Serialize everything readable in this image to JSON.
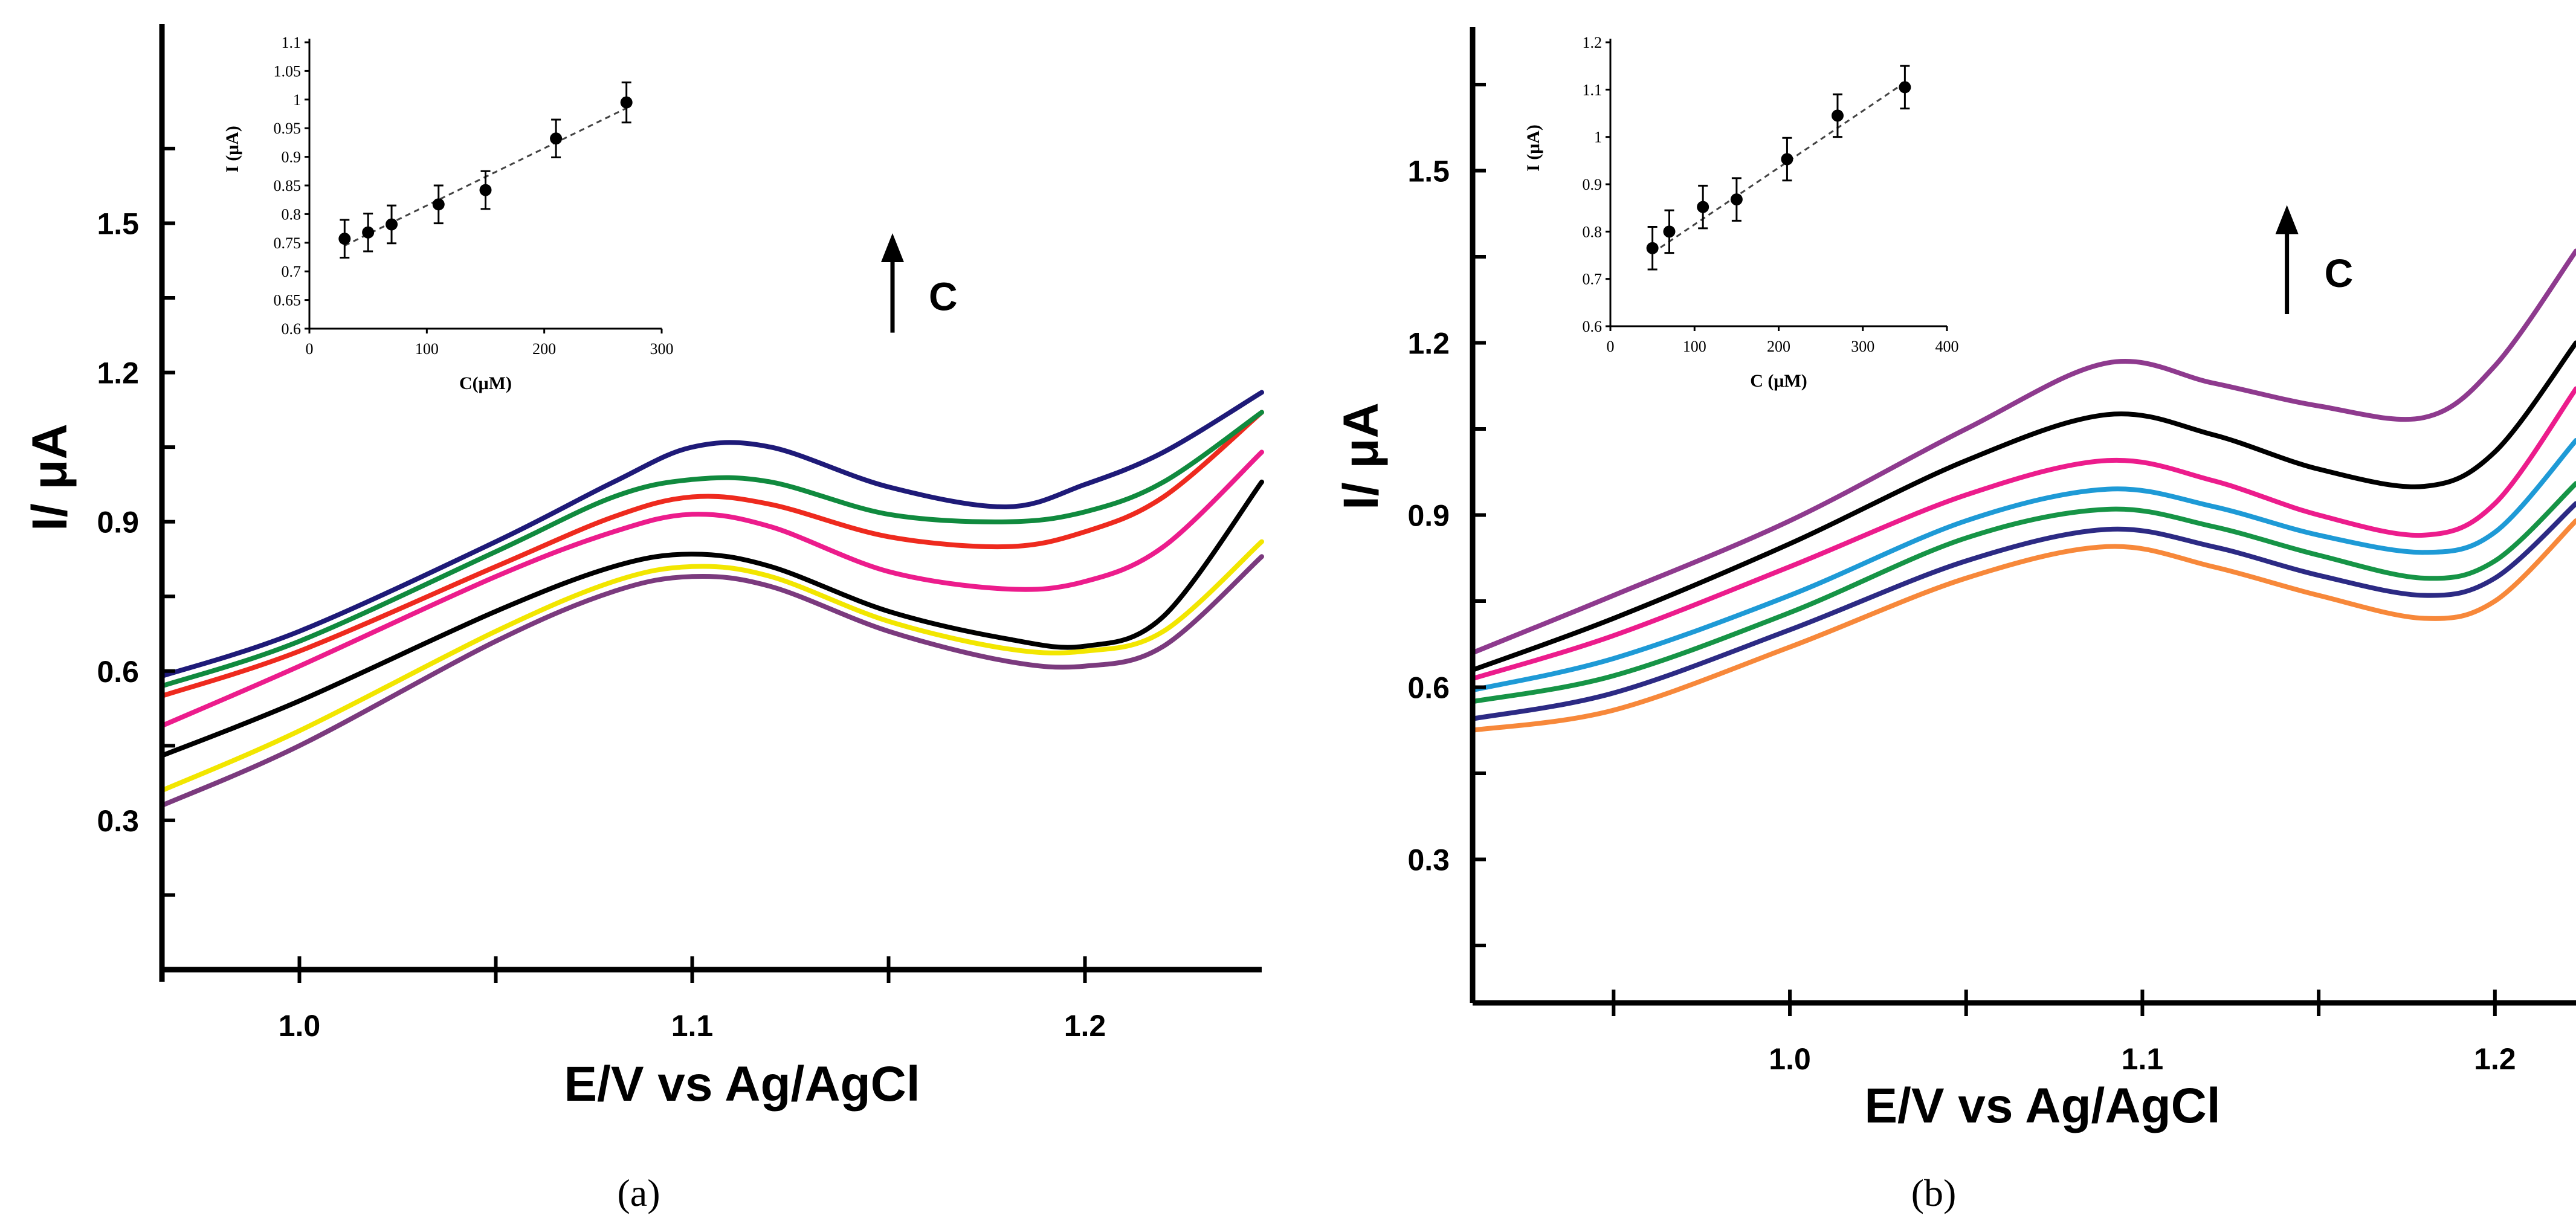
{
  "chart_data": [
    {
      "type": "line",
      "panel_label": "(a)",
      "xlabel": "E/V vs Ag/AgCl",
      "ylabel": "I/ μA",
      "xlim": [
        0.965,
        1.245
      ],
      "ylim": [
        0.0,
        1.9
      ],
      "x_ticks": [
        1.0,
        1.1,
        1.2
      ],
      "x_tick_labels": [
        "1.0",
        "1.1",
        "1.2"
      ],
      "x_minor_ticks": [
        1.05,
        1.15
      ],
      "y_ticks": [
        0.3,
        0.6,
        0.9,
        1.2,
        1.5
      ],
      "y_tick_labels": [
        "0.3",
        "0.6",
        "0.9",
        "1.2",
        "1.5"
      ],
      "y_minor_ticks": [
        0.15,
        0.45,
        0.75,
        1.05,
        1.35,
        1.65
      ],
      "arrow_label": "C",
      "arrow": {
        "x": 1.151,
        "y_from": 1.28,
        "y_to": 1.48
      },
      "series": [
        {
          "name": "curve-1",
          "color": "#7B3A7E",
          "x": [
            0.965,
            1.0,
            1.05,
            1.08,
            1.1,
            1.12,
            1.15,
            1.18,
            1.2,
            1.22,
            1.245
          ],
          "y": [
            0.33,
            0.45,
            0.66,
            0.76,
            0.79,
            0.77,
            0.68,
            0.62,
            0.61,
            0.65,
            0.83
          ]
        },
        {
          "name": "curve-2",
          "color": "#F2E600",
          "x": [
            0.965,
            1.0,
            1.05,
            1.08,
            1.1,
            1.12,
            1.15,
            1.18,
            1.2,
            1.22,
            1.245
          ],
          "y": [
            0.36,
            0.48,
            0.68,
            0.78,
            0.81,
            0.79,
            0.7,
            0.645,
            0.64,
            0.68,
            0.86
          ]
        },
        {
          "name": "curve-3",
          "color": "#000000",
          "x": [
            0.965,
            1.0,
            1.05,
            1.08,
            1.1,
            1.12,
            1.15,
            1.18,
            1.2,
            1.22,
            1.245
          ],
          "y": [
            0.43,
            0.54,
            0.72,
            0.81,
            0.835,
            0.81,
            0.72,
            0.665,
            0.65,
            0.71,
            0.98
          ]
        },
        {
          "name": "curve-4",
          "color": "#EC1C8C",
          "x": [
            0.965,
            1.0,
            1.05,
            1.08,
            1.1,
            1.12,
            1.15,
            1.18,
            1.2,
            1.22,
            1.245
          ],
          "y": [
            0.49,
            0.61,
            0.79,
            0.88,
            0.915,
            0.89,
            0.8,
            0.765,
            0.78,
            0.85,
            1.04
          ]
        },
        {
          "name": "curve-5",
          "color": "#EE2A1E",
          "x": [
            0.965,
            1.0,
            1.05,
            1.08,
            1.1,
            1.12,
            1.15,
            1.18,
            1.2,
            1.22,
            1.245
          ],
          "y": [
            0.55,
            0.64,
            0.81,
            0.91,
            0.95,
            0.935,
            0.87,
            0.85,
            0.88,
            0.95,
            1.12
          ]
        },
        {
          "name": "curve-6",
          "color": "#108A3E",
          "x": [
            0.965,
            1.0,
            1.05,
            1.08,
            1.1,
            1.12,
            1.15,
            1.18,
            1.2,
            1.22,
            1.245
          ],
          "y": [
            0.57,
            0.66,
            0.84,
            0.95,
            0.985,
            0.98,
            0.915,
            0.9,
            0.92,
            0.98,
            1.12
          ]
        },
        {
          "name": "curve-7",
          "color": "#1E1A78",
          "x": [
            0.965,
            1.0,
            1.05,
            1.08,
            1.1,
            1.12,
            1.15,
            1.18,
            1.2,
            1.22,
            1.245
          ],
          "y": [
            0.59,
            0.68,
            0.86,
            0.98,
            1.05,
            1.05,
            0.97,
            0.93,
            0.975,
            1.04,
            1.16
          ]
        }
      ],
      "inset": {
        "type": "scatter",
        "xlabel": "C(μM)",
        "ylabel": "I (μA)",
        "xlim": [
          0,
          300
        ],
        "ylim": [
          0.6,
          1.1
        ],
        "x_ticks": [
          0,
          100,
          200,
          300
        ],
        "x_tick_labels": [
          "0",
          "100",
          "200",
          "300"
        ],
        "y_ticks": [
          0.6,
          0.65,
          0.7,
          0.75,
          0.8,
          0.85,
          0.9,
          0.95,
          1.0,
          1.05,
          1.1
        ],
        "y_tick_labels": [
          "0.6",
          "0.65",
          "0.7",
          "0.75",
          "0.8",
          "0.85",
          "0.9",
          "0.95",
          "1",
          "1.05",
          "1.1"
        ],
        "x": [
          30,
          50,
          70,
          110,
          150,
          210,
          270
        ],
        "y": [
          0.757,
          0.768,
          0.782,
          0.817,
          0.842,
          0.932,
          0.995
        ],
        "error": [
          0.033,
          0.033,
          0.033,
          0.033,
          0.033,
          0.033,
          0.035
        ],
        "fit_line": {
          "x": [
            30,
            270
          ],
          "y": [
            0.745,
            0.985
          ]
        }
      }
    },
    {
      "type": "line",
      "panel_label": "(b)",
      "xlabel": "E/V vs Ag/AgCl",
      "ylabel": "I/ μA",
      "xlim": [
        0.91,
        1.223
      ],
      "ylim": [
        0.05,
        1.75
      ],
      "x_ticks": [
        1.0,
        1.1,
        1.2
      ],
      "x_tick_labels": [
        "1.0",
        "1.1",
        "1.2"
      ],
      "x_minor_ticks": [
        0.95,
        1.05,
        1.15
      ],
      "y_ticks": [
        0.3,
        0.6,
        0.9,
        1.2,
        1.5
      ],
      "y_tick_labels": [
        "0.3",
        "0.6",
        "0.9",
        "1.2",
        "1.5"
      ],
      "y_minor_ticks": [
        0.15,
        0.45,
        0.75,
        1.05,
        1.35,
        1.65
      ],
      "arrow_label": "C",
      "arrow": {
        "x": 1.141,
        "y_from": 1.25,
        "y_to": 1.44
      },
      "series": [
        {
          "name": "curve-1",
          "color": "#F7883A",
          "x": [
            0.91,
            0.95,
            1.0,
            1.05,
            1.09,
            1.12,
            1.15,
            1.18,
            1.2,
            1.223
          ],
          "y": [
            0.525,
            0.56,
            0.67,
            0.79,
            0.845,
            0.81,
            0.76,
            0.72,
            0.75,
            0.89
          ]
        },
        {
          "name": "curve-2",
          "color": "#2C2A84",
          "x": [
            0.91,
            0.95,
            1.0,
            1.05,
            1.09,
            1.12,
            1.15,
            1.18,
            1.2,
            1.223
          ],
          "y": [
            0.545,
            0.59,
            0.7,
            0.82,
            0.875,
            0.845,
            0.795,
            0.76,
            0.79,
            0.92
          ]
        },
        {
          "name": "curve-3",
          "color": "#169446",
          "x": [
            0.91,
            0.95,
            1.0,
            1.05,
            1.09,
            1.12,
            1.15,
            1.18,
            1.2,
            1.223
          ],
          "y": [
            0.575,
            0.62,
            0.73,
            0.86,
            0.91,
            0.88,
            0.83,
            0.79,
            0.82,
            0.955
          ]
        },
        {
          "name": "curve-4",
          "color": "#1E9AD6",
          "x": [
            0.91,
            0.95,
            1.0,
            1.05,
            1.09,
            1.12,
            1.15,
            1.18,
            1.2,
            1.223
          ],
          "y": [
            0.595,
            0.65,
            0.76,
            0.89,
            0.945,
            0.915,
            0.865,
            0.835,
            0.87,
            1.03
          ]
        },
        {
          "name": "curve-5",
          "color": "#EC1C8C",
          "x": [
            0.91,
            0.95,
            1.0,
            1.05,
            1.09,
            1.12,
            1.15,
            1.18,
            1.2,
            1.223
          ],
          "y": [
            0.615,
            0.69,
            0.81,
            0.935,
            0.995,
            0.96,
            0.9,
            0.865,
            0.92,
            1.12
          ]
        },
        {
          "name": "curve-6",
          "color": "#000000",
          "x": [
            0.91,
            0.95,
            1.0,
            1.05,
            1.09,
            1.12,
            1.15,
            1.18,
            1.2,
            1.223
          ],
          "y": [
            0.63,
            0.72,
            0.85,
            0.995,
            1.075,
            1.04,
            0.98,
            0.95,
            1.01,
            1.2
          ]
        },
        {
          "name": "curve-7",
          "color": "#8E3A8E",
          "x": [
            0.91,
            0.95,
            1.0,
            1.05,
            1.09,
            1.12,
            1.15,
            1.18,
            1.2,
            1.223
          ],
          "y": [
            0.66,
            0.76,
            0.89,
            1.05,
            1.165,
            1.13,
            1.09,
            1.07,
            1.16,
            1.36
          ]
        }
      ],
      "inset": {
        "type": "scatter",
        "xlabel": "C (μM)",
        "ylabel": "I (μA)",
        "xlim": [
          0,
          400
        ],
        "ylim": [
          0.6,
          1.2
        ],
        "x_ticks": [
          0,
          100,
          200,
          300,
          400
        ],
        "x_tick_labels": [
          "0",
          "100",
          "200",
          "300",
          "400"
        ],
        "y_ticks": [
          0.6,
          0.7,
          0.8,
          0.9,
          1.0,
          1.1,
          1.2
        ],
        "y_tick_labels": [
          "0.6",
          "0.7",
          "0.8",
          "0.9",
          "1",
          "1.1",
          "1.2"
        ],
        "x": [
          50,
          70,
          110,
          150,
          210,
          270,
          350
        ],
        "y": [
          0.765,
          0.8,
          0.852,
          0.868,
          0.953,
          1.045,
          1.105
        ],
        "error": [
          0.045,
          0.045,
          0.045,
          0.045,
          0.045,
          0.045,
          0.045
        ],
        "fit_line": {
          "x": [
            50,
            350
          ],
          "y": [
            0.755,
            1.115
          ]
        }
      }
    }
  ]
}
